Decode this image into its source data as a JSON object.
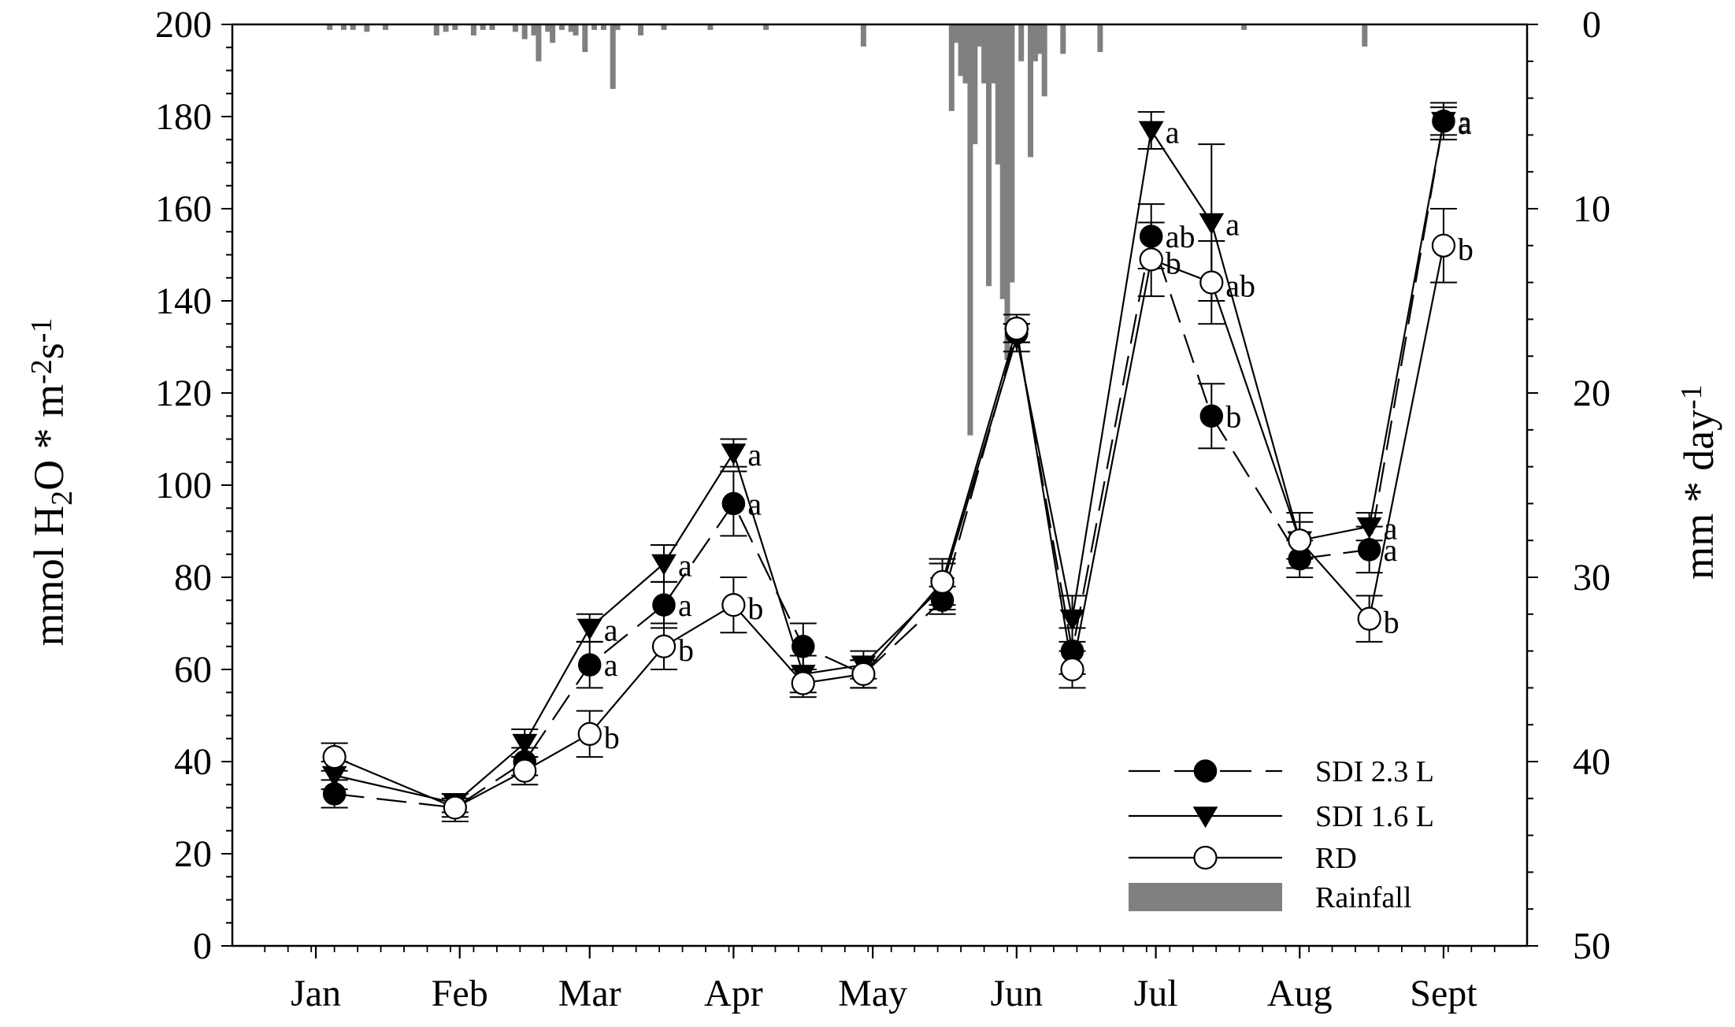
{
  "chart_data": {
    "type": "line",
    "title": "",
    "ylabel_left": "mmol H2O * m-2s-1",
    "ylabel_right": "mm * day-1",
    "ylim_left": [
      0,
      200
    ],
    "ylim_right": [
      0,
      50
    ],
    "right_axis_inverted": true,
    "left_ticks": [
      "0",
      "20",
      "40",
      "60",
      "80",
      "100",
      "120",
      "140",
      "160",
      "180",
      "200"
    ],
    "right_ticks": [
      "0",
      "10",
      "20",
      "30",
      "40",
      "50"
    ],
    "months": [
      "Jan",
      "Feb",
      "Mar",
      "Apr",
      "May",
      "Jun",
      "Jul",
      "Aug",
      "Sept"
    ],
    "month_positions": [
      1,
      32,
      60,
      91,
      121,
      152,
      182,
      213,
      244
    ],
    "xlim": [
      -17,
      262
    ],
    "grid": false,
    "legend_position": "bottom-right",
    "legend": [
      {
        "label": "SDI 2.3 L",
        "style": "dashed",
        "marker": "filled-circle"
      },
      {
        "label": "SDI 1.6 L",
        "style": "solid",
        "marker": "filled-triangle-down"
      },
      {
        "label": "RD",
        "style": "solid",
        "marker": "open-circle"
      },
      {
        "label": "Rainfall",
        "style": "bar",
        "color": "#808080"
      }
    ],
    "x": [
      5,
      31,
      46,
      60,
      76,
      91,
      106,
      119,
      136,
      152,
      164,
      181,
      194,
      213,
      228,
      244
    ],
    "series": [
      {
        "name": "SDI 2.3 L",
        "style": "dashed",
        "marker": "filled-circle",
        "values": [
          33,
          30,
          40,
          61,
          74,
          96,
          65,
          59,
          75,
          133,
          64,
          154,
          115,
          84,
          86,
          179
        ],
        "errors": [
          3,
          2,
          3,
          5,
          5,
          7,
          5,
          3,
          3,
          2,
          5,
          7,
          7,
          4,
          5,
          3
        ],
        "labels": [
          "",
          "",
          "",
          "a",
          "a",
          "a",
          "",
          "",
          "",
          "",
          "",
          "ab",
          "b",
          "",
          "a",
          "a"
        ]
      },
      {
        "name": "SDI 1.6 L",
        "style": "solid",
        "marker": "filled-triangle-down",
        "values": [
          37,
          31,
          44,
          69,
          83,
          107,
          59,
          61,
          78,
          132,
          71,
          177,
          157,
          88,
          91,
          179
        ],
        "errors": [
          3,
          2,
          3,
          3,
          4,
          3,
          4,
          3,
          5,
          3,
          5,
          4,
          17,
          6,
          3,
          4
        ],
        "labels": [
          "",
          "",
          "",
          "a",
          "a",
          "a",
          "",
          "",
          "",
          "",
          "",
          "a",
          "a",
          "",
          "a",
          "a"
        ]
      },
      {
        "name": "RD",
        "style": "solid",
        "marker": "open-circle",
        "values": [
          41,
          30,
          38,
          46,
          65,
          74,
          57,
          59,
          79,
          134,
          60,
          149,
          144,
          88,
          71,
          152
        ],
        "errors": [
          3,
          3,
          3,
          5,
          5,
          6,
          3,
          3,
          5,
          3,
          4,
          8,
          9,
          4,
          5,
          8
        ],
        "labels": [
          "",
          "",
          "",
          "b",
          "b",
          "b",
          "",
          "",
          "",
          "",
          "",
          "b",
          "ab",
          "",
          "b",
          "b"
        ]
      }
    ],
    "rainfall": {
      "name": "Rainfall",
      "unit": "mm * day-1",
      "days": [
        4,
        7,
        9,
        12,
        16,
        27,
        29,
        31,
        35,
        37,
        39,
        44,
        46,
        48,
        49,
        51,
        52,
        54,
        56,
        57,
        59,
        61,
        63,
        65,
        66,
        71,
        76,
        86,
        98,
        119,
        138,
        139,
        140,
        141,
        142,
        143,
        144,
        145,
        146,
        147,
        148,
        149,
        150,
        151,
        153,
        155,
        156,
        157,
        158,
        162,
        170,
        201,
        227
      ],
      "values": [
        0.3,
        0.3,
        0.3,
        0.4,
        0.3,
        0.6,
        0.4,
        0.3,
        0.6,
        0.3,
        0.3,
        0.4,
        0.8,
        0.6,
        2.0,
        0.4,
        1.0,
        0.3,
        0.4,
        0.6,
        1.5,
        0.3,
        0.3,
        3.5,
        0.3,
        0.6,
        0.3,
        0.3,
        0.3,
        1.2,
        4.7,
        1.0,
        2.8,
        3.2,
        22.3,
        6.5,
        1.2,
        3.2,
        14.2,
        3.2,
        7.6,
        14.9,
        18.2,
        14.0,
        2.0,
        7.2,
        2.0,
        1.6,
        3.9,
        1.6,
        1.5,
        0.3,
        1.2
      ]
    },
    "annotations": []
  }
}
